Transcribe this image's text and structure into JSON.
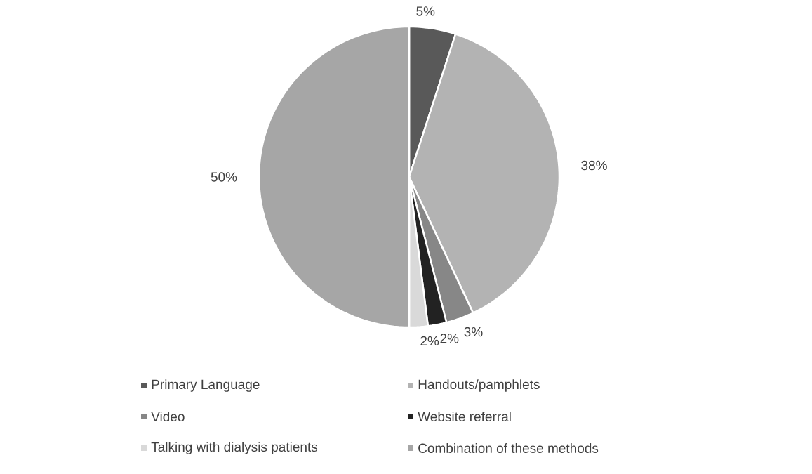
{
  "chart_data": {
    "type": "pie",
    "categories": [
      "Primary Language",
      "Handouts/pamphlets",
      "Video",
      "Website referral",
      "Talking with dialysis patients",
      "Combination of these methods"
    ],
    "values": [
      5,
      38,
      3,
      2,
      2,
      50
    ],
    "colors": [
      "#595959",
      "#b3b3b3",
      "#878787",
      "#222222",
      "#d9d9d9",
      "#a6a6a6"
    ],
    "value_labels": [
      "5%",
      "38%",
      "3%",
      "2%",
      "2%",
      "50%"
    ],
    "legend": "bottom"
  }
}
